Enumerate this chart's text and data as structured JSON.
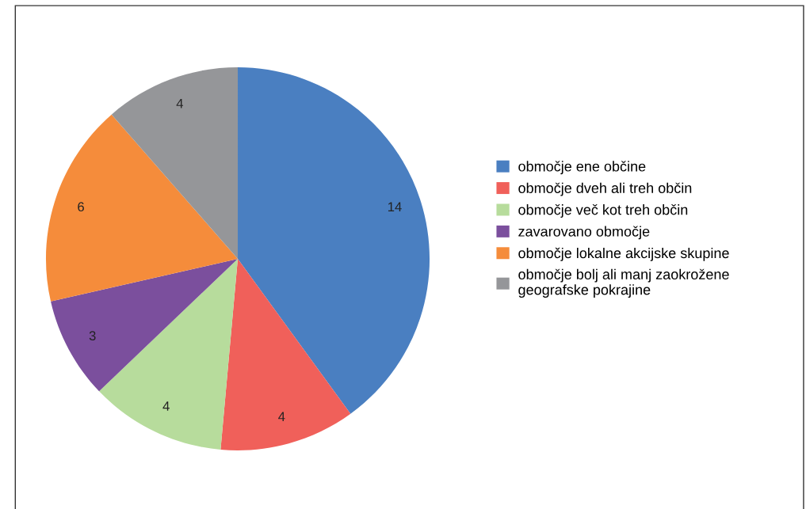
{
  "chart_data": {
    "type": "pie",
    "categories": [
      "območje ene občine",
      "območje dveh ali treh občin",
      "območje več kot treh občin",
      "zavarovano območje",
      "območje lokalne akcijske skupine",
      "območje bolj ali manj zaokrožene\ngeografske pokrajine"
    ],
    "values": [
      14,
      4,
      4,
      3,
      6,
      4
    ],
    "colors": [
      "#4a7fc1",
      "#f0605a",
      "#b7dc9c",
      "#7b4f9d",
      "#f58c3b",
      "#959699"
    ],
    "data_labels": true,
    "legend": "right"
  }
}
